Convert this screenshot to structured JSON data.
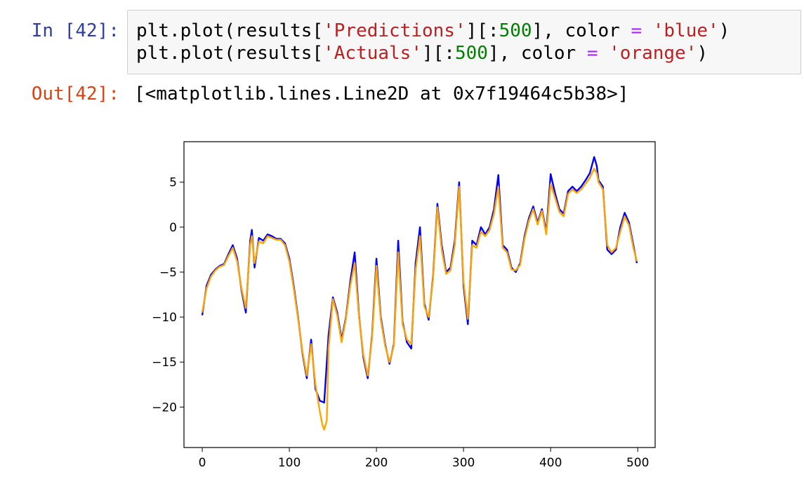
{
  "notebook": {
    "in_prompt": "In [42]:",
    "out_prompt": "Out[42]:",
    "code_lines": [
      {
        "a": "plt.plot(results[",
        "s1": "'Predictions'",
        "b": "][:",
        "n1": "500",
        "c": "], color ",
        "o1": "=",
        "d": " ",
        "s2": "'blue'",
        "e": ")"
      },
      {
        "a": "plt.plot(results[",
        "s1": "'Actuals'",
        "b": "][:",
        "n1": "500",
        "c": "], color ",
        "o1": "=",
        "d": " ",
        "s2": "'orange'",
        "e": ")"
      }
    ],
    "output_text": "[<matplotlib.lines.Line2D at 0x7f19464c5b38>]"
  },
  "colors": {
    "predictions": "#0000ff",
    "actuals": "#ffa500"
  },
  "chart_data": {
    "type": "line",
    "title": "",
    "xlabel": "",
    "ylabel": "",
    "xlim": [
      -21,
      520
    ],
    "ylim": [
      -24.5,
      9.5
    ],
    "xticks": [
      0,
      100,
      200,
      300,
      400,
      500
    ],
    "yticks": [
      5,
      0,
      -5,
      -10,
      -15,
      -20
    ],
    "xtick_labels": [
      "0",
      "100",
      "200",
      "300",
      "400",
      "500"
    ],
    "ytick_labels": [
      "5",
      "0",
      "−5",
      "−10",
      "−15",
      "−20"
    ],
    "grid": false,
    "legend": false,
    "series": [
      {
        "color": "#0000ff",
        "x": [
          0,
          5,
          10,
          15,
          20,
          25,
          30,
          35,
          40,
          45,
          50,
          55,
          57,
          60,
          65,
          70,
          75,
          80,
          85,
          90,
          95,
          100,
          105,
          110,
          115,
          120,
          125,
          130,
          135,
          140,
          145,
          150,
          155,
          160,
          165,
          170,
          175,
          180,
          185,
          190,
          195,
          200,
          205,
          210,
          215,
          220,
          225,
          230,
          235,
          240,
          245,
          250,
          255,
          260,
          265,
          270,
          275,
          280,
          285,
          290,
          295,
          300,
          305,
          310,
          315,
          320,
          325,
          330,
          335,
          340,
          345,
          350,
          355,
          360,
          365,
          370,
          375,
          380,
          385,
          390,
          395,
          400,
          405,
          410,
          415,
          420,
          425,
          430,
          435,
          440,
          445,
          450,
          453,
          455,
          460,
          465,
          470,
          475,
          480,
          485,
          490,
          495,
          499
        ],
        "y": [
          -9.8,
          -6.5,
          -5.3,
          -4.7,
          -4.3,
          -4.1,
          -3.0,
          -2.0,
          -3.5,
          -7.0,
          -9.5,
          -1.5,
          -0.3,
          -4.5,
          -1.2,
          -1.5,
          -0.8,
          -1.0,
          -1.3,
          -1.3,
          -1.8,
          -3.5,
          -6.5,
          -10.0,
          -14.0,
          -16.8,
          -12.5,
          -18.0,
          -19.3,
          -19.5,
          -12.0,
          -7.8,
          -9.5,
          -12.5,
          -10.0,
          -6.0,
          -2.8,
          -9.8,
          -14.5,
          -16.8,
          -12.0,
          -3.5,
          -10.0,
          -13.0,
          -15.2,
          -13.0,
          -1.5,
          -10.5,
          -12.8,
          -13.5,
          -4.0,
          0.0,
          -8.5,
          -10.3,
          -5.5,
          2.6,
          -2.0,
          -5.0,
          -4.5,
          -1.5,
          5.0,
          -6.5,
          -10.8,
          -1.5,
          -2.0,
          0.0,
          -0.8,
          0.0,
          2.0,
          5.8,
          -2.0,
          -2.5,
          -4.5,
          -5.0,
          -4.0,
          -1.0,
          1.0,
          2.3,
          0.5,
          2.0,
          -0.5,
          5.9,
          3.8,
          2.0,
          1.5,
          4.0,
          4.5,
          4.0,
          4.5,
          5.2,
          6.0,
          7.8,
          6.8,
          5.2,
          4.5,
          -2.5,
          -3.0,
          -2.5,
          0.0,
          1.6,
          0.5,
          -2.0,
          -4.0
        ]
      },
      {
        "color": "#ffa500",
        "x": [
          0,
          5,
          10,
          15,
          20,
          25,
          30,
          35,
          40,
          45,
          50,
          55,
          57,
          60,
          65,
          70,
          75,
          80,
          85,
          90,
          95,
          100,
          105,
          110,
          115,
          120,
          125,
          130,
          135,
          138,
          140,
          143,
          145,
          150,
          155,
          160,
          165,
          170,
          175,
          180,
          185,
          190,
          195,
          200,
          205,
          210,
          215,
          220,
          225,
          230,
          235,
          240,
          245,
          250,
          255,
          260,
          265,
          270,
          275,
          280,
          285,
          290,
          295,
          300,
          305,
          310,
          315,
          320,
          325,
          330,
          335,
          340,
          345,
          350,
          355,
          360,
          365,
          370,
          375,
          380,
          385,
          390,
          395,
          400,
          405,
          410,
          415,
          420,
          425,
          430,
          435,
          440,
          445,
          450,
          453,
          455,
          460,
          465,
          470,
          475,
          480,
          485,
          490,
          495,
          499
        ],
        "y": [
          -9.5,
          -6.8,
          -5.5,
          -4.8,
          -4.4,
          -4.2,
          -3.2,
          -2.3,
          -3.8,
          -6.8,
          -9.0,
          -2.0,
          -1.0,
          -4.0,
          -1.6,
          -1.8,
          -1.0,
          -1.2,
          -1.4,
          -1.4,
          -2.0,
          -3.8,
          -6.8,
          -10.2,
          -13.8,
          -16.5,
          -13.0,
          -17.5,
          -20.5,
          -22.0,
          -22.5,
          -21.5,
          -13.5,
          -8.0,
          -9.8,
          -12.8,
          -10.2,
          -6.5,
          -4.0,
          -10.0,
          -14.2,
          -16.5,
          -12.3,
          -4.3,
          -10.3,
          -13.2,
          -15.0,
          -13.2,
          -2.8,
          -10.8,
          -12.5,
          -13.0,
          -4.8,
          -1.0,
          -8.8,
          -10.0,
          -5.8,
          2.2,
          -2.5,
          -5.2,
          -4.8,
          -2.0,
          4.5,
          -6.0,
          -10.2,
          -2.0,
          -2.3,
          -0.5,
          -1.0,
          -0.3,
          1.5,
          4.5,
          -2.3,
          -2.8,
          -4.7,
          -4.8,
          -4.2,
          -1.3,
          0.7,
          2.0,
          0.3,
          1.8,
          -0.8,
          4.8,
          3.3,
          1.7,
          1.2,
          3.7,
          4.2,
          3.8,
          4.2,
          4.8,
          5.5,
          6.5,
          6.0,
          5.0,
          4.2,
          -2.0,
          -2.8,
          -2.3,
          -0.5,
          1.2,
          0.2,
          -2.3,
          -3.8
        ]
      }
    ]
  }
}
